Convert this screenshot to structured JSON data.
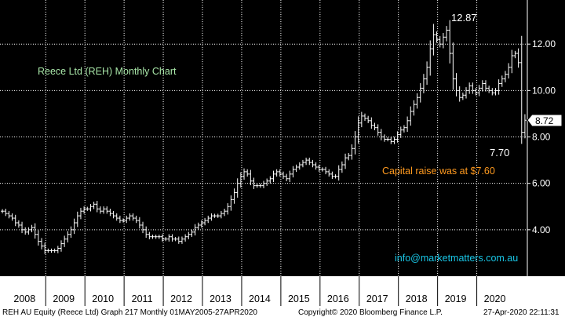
{
  "chart_data": {
    "type": "bar",
    "title": "Reece Ltd (REH) Monthly Chart",
    "ticker_label": "REH AU Equity (Reece Ltd) Graph 217  Monthly 01MAY2005-27APR2020",
    "y_ticks": [
      "4.00",
      "6.00",
      "8.00",
      "10.00",
      "12.00"
    ],
    "y_tick_values": [
      4,
      6,
      8,
      10,
      12
    ],
    "ylim": [
      2.0,
      13.9
    ],
    "x_ticks": [
      "2008",
      "2009",
      "2010",
      "2011",
      "2012",
      "2013",
      "2014",
      "2015",
      "2016",
      "2017",
      "2018",
      "2019",
      "2020"
    ],
    "last_price_label": "8.72",
    "annotations": {
      "high": "12.87",
      "low": "7.70",
      "capital_raise": "Capital raise was at $7.60",
      "contact": "info@marketmatters.com.au"
    },
    "copyright": "Copyright© 2020 Bloomberg Finance L.P.",
    "timestamp": "27-Apr-2020 22:11:31",
    "colors": {
      "background": "#000000",
      "bars": "#ffffff",
      "grid": "#ffffff",
      "title": "#a8e6a8",
      "annotation_orange": "#ff9a1f",
      "contact": "#19c6e6",
      "footer_bg": "#ffffff",
      "axis_bg": "#ffffff"
    },
    "monthly_closes": [
      4.8,
      4.7,
      4.6,
      4.5,
      4.3,
      4.2,
      4.0,
      3.9,
      4.0,
      4.1,
      3.8,
      3.5,
      3.3,
      3.1,
      3.1,
      3.1,
      3.1,
      3.2,
      3.4,
      3.6,
      3.8,
      4.0,
      4.3,
      4.6,
      4.8,
      4.9,
      4.9,
      5.0,
      5.1,
      4.9,
      4.8,
      4.9,
      4.8,
      4.7,
      4.6,
      4.5,
      4.4,
      4.4,
      4.5,
      4.6,
      4.5,
      4.4,
      4.2,
      4.0,
      3.8,
      3.7,
      3.7,
      3.7,
      3.7,
      3.6,
      3.6,
      3.7,
      3.6,
      3.6,
      3.5,
      3.6,
      3.7,
      3.8,
      3.9,
      4.1,
      4.2,
      4.3,
      4.4,
      4.5,
      4.6,
      4.6,
      4.6,
      4.7,
      4.8,
      5.0,
      5.3,
      5.6,
      6.0,
      6.3,
      6.5,
      6.4,
      6.1,
      5.9,
      5.9,
      5.9,
      6.0,
      6.1,
      6.2,
      6.4,
      6.5,
      6.4,
      6.3,
      6.2,
      6.4,
      6.6,
      6.7,
      6.8,
      6.9,
      7.0,
      6.9,
      6.8,
      6.7,
      6.6,
      6.6,
      6.5,
      6.4,
      6.3,
      6.3,
      6.6,
      6.8,
      7.1,
      7.2,
      7.5,
      8.0,
      8.6,
      8.9,
      8.8,
      8.7,
      8.5,
      8.4,
      8.2,
      8.0,
      7.9,
      7.9,
      7.8,
      7.9,
      8.1,
      8.3,
      8.4,
      8.7,
      9.1,
      9.4,
      9.7,
      10.1,
      10.5,
      11.0,
      11.8,
      12.4,
      12.2,
      12.0,
      12.3,
      12.6,
      11.6,
      10.5,
      10.0,
      9.7,
      9.8,
      10.0,
      10.2,
      10.0,
      9.9,
      10.1,
      10.3,
      10.1,
      10.0,
      9.9,
      10.0,
      10.3,
      10.5,
      10.7,
      11.0,
      11.5,
      11.6,
      11.2,
      8.2,
      8.72
    ]
  }
}
